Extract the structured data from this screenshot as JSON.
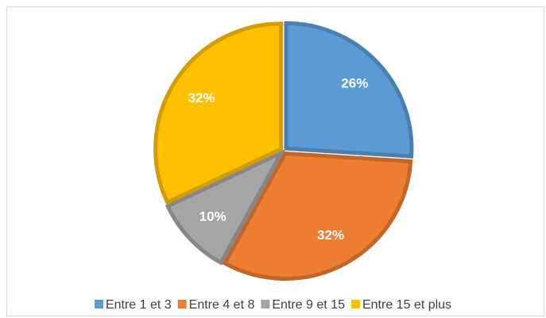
{
  "chart_data": {
    "type": "pie",
    "categories": [
      "Entre 1 et 3",
      "Entre 4 et 8",
      "Entre 9 et 15",
      "Entre 15 et plus"
    ],
    "values": [
      26,
      32,
      10,
      32
    ],
    "value_labels": [
      "26%",
      "32%",
      "10%",
      "32%"
    ],
    "colors": [
      "#5b9bd5",
      "#ed7d31",
      "#a5a5a5",
      "#ffc000"
    ],
    "legend": "bottom"
  }
}
